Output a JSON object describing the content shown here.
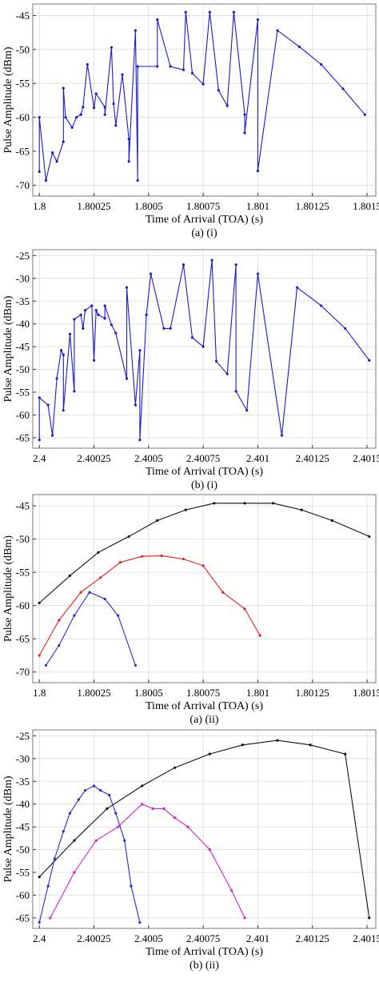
{
  "chart_data": [
    {
      "type": "line",
      "caption": "(a) (i)",
      "xlabel": "Time of Arrival (TOA) (s)",
      "ylabel": "Pulse Amplitude (dBm)",
      "xlim": [
        1.79997,
        1.80154
      ],
      "ylim": [
        -71.6,
        -43.3
      ],
      "xticks": [
        1.8,
        1.80025,
        1.8005,
        1.80075,
        1.801,
        1.80125,
        1.8015
      ],
      "xtick_labels": [
        "1.8",
        "1.80025",
        "1.8005",
        "1.80075",
        "1.801",
        "1.80125",
        "1.8015"
      ],
      "yticks": [
        -70,
        -65,
        -60,
        -55,
        -50,
        -45
      ],
      "ytick_labels": [
        "-70",
        "-65",
        "-60",
        "-55",
        "-50",
        "-45"
      ],
      "grid": true,
      "series": [
        {
          "color": "#1c1cc8",
          "x": [
            1.8,
            1.8,
            1.80003,
            1.80006,
            1.80008,
            1.80011,
            1.80011,
            1.80012,
            1.80015,
            1.80017,
            1.80019,
            1.8002,
            1.80022,
            1.80025,
            1.80026,
            1.8003,
            1.8003,
            1.80033,
            1.80034,
            1.80035,
            1.80038,
            1.80041,
            1.80041,
            1.80044,
            1.80045,
            1.80045,
            1.80054,
            1.80054,
            1.8006,
            1.80066,
            1.80067,
            1.8007,
            1.80075,
            1.80078,
            1.80082,
            1.80086,
            1.80089,
            1.80094,
            1.80094,
            1.801,
            1.801,
            1.80109,
            1.80119,
            1.80129,
            1.80139,
            1.80149
          ],
          "y": [
            -68,
            -60,
            -69.3,
            -65.2,
            -66.5,
            -63.6,
            -55.7,
            -60,
            -61.5,
            -60,
            -59.6,
            -58.5,
            -52.2,
            -58.6,
            -56.5,
            -58.5,
            -59.6,
            -49.7,
            -58,
            -61.2,
            -53.7,
            -63.2,
            -66.5,
            -47.2,
            -69.3,
            -52.5,
            -52.5,
            -45.6,
            -52.5,
            -53,
            -44.5,
            -53.5,
            -55.1,
            -44.5,
            -56,
            -58.3,
            -44.5,
            -59.6,
            -62.3,
            -45.6,
            -67.9,
            -47.2,
            -49.6,
            -52.2,
            -55.8,
            -59.6
          ]
        }
      ]
    },
    {
      "type": "line",
      "caption": "(b) (i)",
      "xlabel": "Time of Arrival (TOA) (s)",
      "ylabel": "Pulse Amplitude (dBm)",
      "xlim": [
        2.39997,
        2.40154
      ],
      "ylim": [
        -67.3,
        -23.7
      ],
      "xticks": [
        2.4,
        2.40025,
        2.4005,
        2.40075,
        2.401,
        2.40125,
        2.4015
      ],
      "xtick_labels": [
        "2.4",
        "2.40025",
        "2.4005",
        "2.40075",
        "2.401",
        "2.40125",
        "2.4015"
      ],
      "yticks": [
        -65,
        -60,
        -55,
        -50,
        -45,
        -40,
        -35,
        -30,
        -25
      ],
      "ytick_labels": [
        "-65",
        "-60",
        "-55",
        "-50",
        "-45",
        "-40",
        "-35",
        "-30",
        "-25"
      ],
      "grid": true,
      "series": [
        {
          "color": "#1c1cc8",
          "x": [
            2.4,
            2.4,
            2.40004,
            2.40006,
            2.40008,
            2.4001,
            2.40011,
            2.40011,
            2.40014,
            2.40016,
            2.40016,
            2.40019,
            2.4002,
            2.40021,
            2.40024,
            2.40025,
            2.40026,
            2.40027,
            2.4003,
            2.4003,
            2.40033,
            2.40035,
            2.4004,
            2.4004,
            2.40044,
            2.40046,
            2.40046,
            2.40049,
            2.40051,
            2.40057,
            2.4006,
            2.40066,
            2.4007,
            2.40075,
            2.40079,
            2.40081,
            2.40086,
            2.4009,
            2.4009,
            2.40095,
            2.401,
            2.40111,
            2.40118,
            2.40129,
            2.4014,
            2.40151
          ],
          "y": [
            -65.5,
            -56.2,
            -57.8,
            -64.5,
            -52,
            -45.8,
            -46.8,
            -59,
            -42.2,
            -54.8,
            -39,
            -38,
            -41,
            -37,
            -36,
            -48,
            -37,
            -38,
            -38.8,
            -36,
            -40.2,
            -42,
            -52,
            -32,
            -57.8,
            -45.8,
            -65.5,
            -38,
            -29,
            -41,
            -41,
            -27,
            -43,
            -45,
            -26,
            -48.2,
            -51,
            -27,
            -54.8,
            -59,
            -29,
            -64.5,
            -32,
            -36,
            -41,
            -48
          ]
        }
      ]
    },
    {
      "type": "line",
      "caption": "(a) (ii)",
      "xlabel": "Time of Arrival (TOA) (s)",
      "ylabel": "Pulse Amplitude (dBm)",
      "xlim": [
        1.79997,
        1.80154
      ],
      "ylim": [
        -71.6,
        -43.3
      ],
      "xticks": [
        1.8,
        1.80025,
        1.8005,
        1.80075,
        1.801,
        1.80125,
        1.8015
      ],
      "xtick_labels": [
        "1.8",
        "1.80025",
        "1.8005",
        "1.80075",
        "1.801",
        "1.80125",
        "1.8015"
      ],
      "yticks": [
        -70,
        -65,
        -60,
        -55,
        -50,
        -45
      ],
      "ytick_labels": [
        "-70",
        "-65",
        "-60",
        "-55",
        "-50",
        "-45"
      ],
      "grid": true,
      "series": [
        {
          "color": "#111111",
          "x": [
            1.8,
            1.80014,
            1.80027,
            1.80041,
            1.80054,
            1.80067,
            1.8008,
            1.80094,
            1.80107,
            1.8012,
            1.80134,
            1.80151
          ],
          "y": [
            -59.6,
            -55.5,
            -52,
            -49.6,
            -47.2,
            -45.6,
            -44.6,
            -44.6,
            -44.6,
            -45.6,
            -47.2,
            -49.6
          ]
        },
        {
          "color": "#e02020",
          "x": [
            1.8,
            1.80009,
            1.80019,
            1.80028,
            1.80037,
            1.80047,
            1.80056,
            1.80066,
            1.80075,
            1.80084,
            1.80094,
            1.80101
          ],
          "y": [
            -67.5,
            -62.2,
            -58,
            -55.8,
            -53.5,
            -52.6,
            -52.5,
            -53,
            -54,
            -58,
            -60.5,
            -64.5
          ]
        },
        {
          "color": "#2b2bd0",
          "x": [
            1.80003,
            1.80009,
            1.80016,
            1.80023,
            1.8003,
            1.80036,
            1.80044
          ],
          "y": [
            -69,
            -66,
            -61.5,
            -58,
            -59,
            -61.5,
            -69
          ]
        }
      ]
    },
    {
      "type": "line",
      "caption": "(b) (ii)",
      "xlabel": "Time of Arrival (TOA) (s)",
      "ylabel": "Pulse Amplitude (dBm)",
      "xlim": [
        2.39997,
        2.40154
      ],
      "ylim": [
        -67.3,
        -23.7
      ],
      "xticks": [
        2.4,
        2.40025,
        2.4005,
        2.40075,
        2.401,
        2.40125,
        2.4015
      ],
      "xtick_labels": [
        "2.4",
        "2.40025",
        "2.4005",
        "2.40075",
        "2.401",
        "2.40125",
        "2.4015"
      ],
      "yticks": [
        -65,
        -60,
        -55,
        -50,
        -45,
        -40,
        -35,
        -30,
        -25
      ],
      "ytick_labels": [
        "-65",
        "-60",
        "-55",
        "-50",
        "-45",
        "-40",
        "-35",
        "-30",
        "-25"
      ],
      "grid": true,
      "series": [
        {
          "color": "#111111",
          "x": [
            2.4,
            2.40016,
            2.40031,
            2.40047,
            2.40062,
            2.40078,
            2.40093,
            2.40109,
            2.40124,
            2.4014,
            2.40151
          ],
          "y": [
            -56,
            -48,
            -41,
            -36,
            -32,
            -29,
            -27,
            -26,
            -27,
            -29,
            -65
          ]
        },
        {
          "color": "#2b2bd0",
          "x": [
            2.4,
            2.40004,
            2.40007,
            2.40011,
            2.40014,
            2.40018,
            2.40021,
            2.40025,
            2.40028,
            2.40032,
            2.40035,
            2.40039,
            2.40042,
            2.40046
          ],
          "y": [
            -66,
            -58,
            -52,
            -46,
            -42,
            -39,
            -37,
            -36,
            -37,
            -38,
            -42,
            -48,
            -58,
            -66
          ]
        },
        {
          "color": "#d020d0",
          "x": [
            2.40005,
            2.40016,
            2.40026,
            2.40036,
            2.40047,
            2.40052,
            2.40057,
            2.40062,
            2.40068,
            2.40078,
            2.40088,
            2.40094
          ],
          "y": [
            -65,
            -55,
            -48,
            -45,
            -40,
            -41,
            -41,
            -43,
            -45,
            -50,
            -59,
            -65
          ]
        }
      ]
    }
  ]
}
